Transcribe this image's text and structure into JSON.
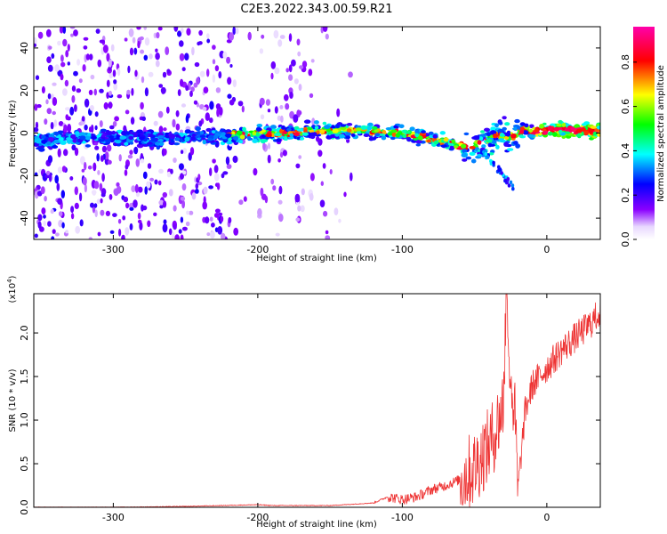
{
  "title": "C2E3.2022.343.00.59.R21",
  "chart_data": [
    {
      "type": "heatmap",
      "xlabel": "Height of straight line (km)",
      "ylabel": "Frequency (Hz)",
      "xlim": [
        -355,
        37
      ],
      "ylim": [
        -50,
        50
      ],
      "xticks": [
        -300,
        -200,
        -100,
        0
      ],
      "yticks": [
        -40,
        -20,
        0,
        20,
        40
      ],
      "colorbar": {
        "label": "Normalized spectral amplitude",
        "range": [
          0.0,
          0.96
        ],
        "ticks": [
          "0.0",
          "0.2",
          "0.4",
          "0.6",
          "0.8"
        ],
        "colormap": [
          "#ffffff",
          "#8a00ff",
          "#0000ff",
          "#00ffff",
          "#00ff00",
          "#ffff00",
          "#ff0000",
          "#ff00aa"
        ]
      },
      "ridge": {
        "x": [
          -355,
          -330,
          -300,
          -270,
          -250,
          -220,
          -200,
          -180,
          -160,
          -140,
          -120,
          -100,
          -85,
          -70,
          -60,
          -50,
          -45,
          -40,
          -35,
          -30,
          -25,
          -20,
          -15,
          -10,
          -5,
          0,
          10,
          20,
          37
        ],
        "y": [
          -4,
          -3,
          -2,
          -3,
          -2,
          -1,
          0,
          0,
          1,
          1,
          1,
          0,
          -2,
          -4,
          -6,
          -6,
          -5,
          -3,
          -1,
          -2,
          -2,
          0,
          2,
          0,
          1,
          1,
          2,
          1,
          1
        ]
      }
    },
    {
      "type": "line",
      "xlabel": "Height of straight line (km)",
      "ylabel": "SNR (10 * v/v)",
      "multiplier": "(x10^4)",
      "xlim": [
        -355,
        37
      ],
      "ylim": [
        0,
        2.45
      ],
      "xticks": [
        -300,
        -200,
        -100,
        0
      ],
      "yticks": [
        "0.0",
        "0.5",
        "1.0",
        "1.5",
        "2.0"
      ],
      "color": "#ee3333",
      "series": [
        {
          "name": "",
          "x": [
            -355,
            -300,
            -250,
            -200,
            -190,
            -150,
            -120,
            -110,
            -100,
            -90,
            -80,
            -70,
            -60,
            -50,
            -45,
            -40,
            -35,
            -30,
            -28,
            -25,
            -22,
            -20,
            -15,
            -10,
            -5,
            0,
            10,
            20,
            30,
            37
          ],
          "y": [
            0.0,
            0.0,
            0.01,
            0.03,
            0.02,
            0.02,
            0.05,
            0.12,
            0.09,
            0.12,
            0.2,
            0.25,
            0.32,
            0.45,
            0.6,
            0.7,
            0.9,
            1.2,
            2.45,
            1.5,
            1.0,
            0.2,
            1.1,
            1.4,
            1.5,
            1.6,
            1.8,
            1.95,
            2.1,
            2.25
          ]
        }
      ]
    }
  ]
}
